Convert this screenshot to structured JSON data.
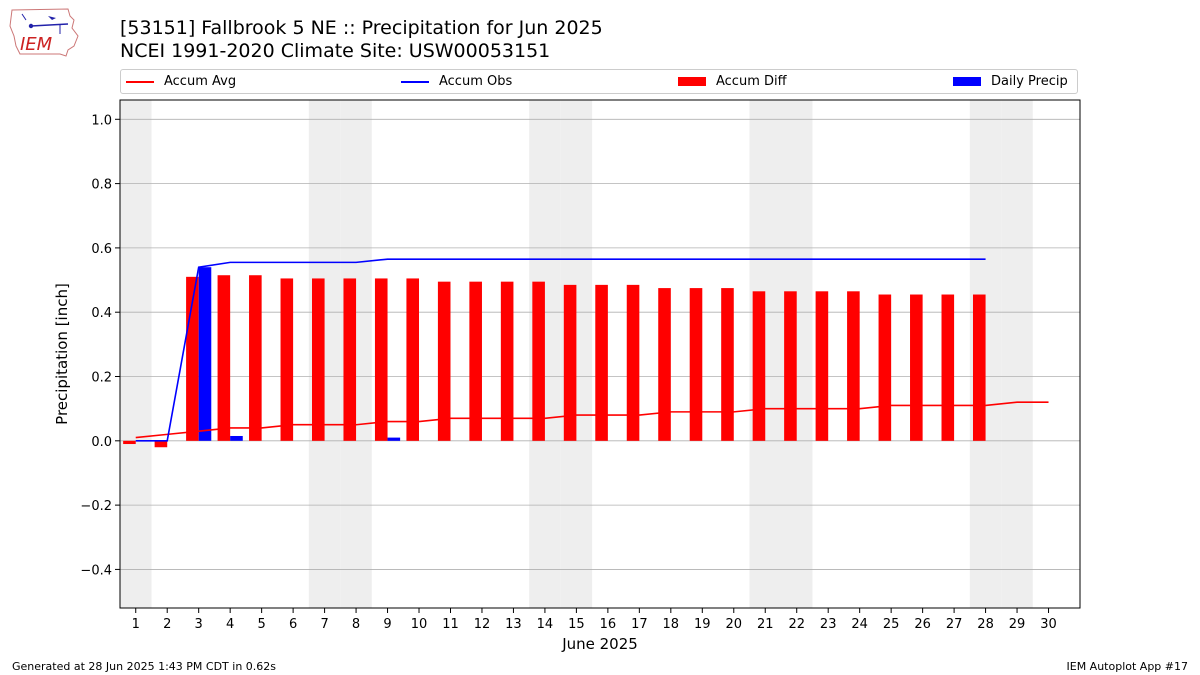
{
  "header": {
    "title_line1": "[53151] Fallbrook 5 NE :: Precipitation for Jun 2025",
    "title_line2": "NCEI 1991-2020 Climate Site: USW00053151",
    "logo_text": "IEM"
  },
  "legend": {
    "accum_avg": "Accum Avg",
    "accum_obs": "Accum Obs",
    "accum_diff": "Accum Diff",
    "daily_precip": "Daily Precip"
  },
  "footer": {
    "generated": "Generated at 28 Jun 2025 1:43 PM CDT in 0.62s",
    "app": "IEM Autoplot App #17"
  },
  "colors": {
    "accum_avg": "#ff0000",
    "accum_obs": "#0000ff",
    "accum_diff": "#ff0000",
    "daily_precip": "#0000ff",
    "weekend_band": "#eeeeee",
    "grid": "#b0b0b0"
  },
  "chart_data": {
    "type": "bar",
    "xlabel": "June 2025",
    "ylabel": "Precipitation [inch]",
    "ylim": [
      -0.52,
      1.06
    ],
    "yticks": [
      -0.4,
      -0.2,
      0.0,
      0.2,
      0.4,
      0.6,
      0.8,
      1.0
    ],
    "ytick_labels": [
      "−0.4",
      "−0.2",
      "0.0",
      "0.2",
      "0.4",
      "0.6",
      "0.8",
      "1.0"
    ],
    "xlim": [
      0.5,
      31.0
    ],
    "days": [
      1,
      2,
      3,
      4,
      5,
      6,
      7,
      8,
      9,
      10,
      11,
      12,
      13,
      14,
      15,
      16,
      17,
      18,
      19,
      20,
      21,
      22,
      23,
      24,
      25,
      26,
      27,
      28,
      29,
      30
    ],
    "grid": "horizontal",
    "legend_position": "top",
    "weekend_days": [
      1,
      7,
      8,
      14,
      15,
      21,
      22,
      28,
      29
    ],
    "series": [
      {
        "name": "Accum Avg",
        "kind": "line",
        "x": [
          1,
          2,
          3,
          4,
          5,
          6,
          7,
          8,
          9,
          10,
          11,
          12,
          13,
          14,
          15,
          16,
          17,
          18,
          19,
          20,
          21,
          22,
          23,
          24,
          25,
          26,
          27,
          28,
          29,
          30
        ],
        "values": [
          0.01,
          0.02,
          0.03,
          0.04,
          0.04,
          0.05,
          0.05,
          0.05,
          0.06,
          0.06,
          0.07,
          0.07,
          0.07,
          0.07,
          0.08,
          0.08,
          0.08,
          0.09,
          0.09,
          0.09,
          0.1,
          0.1,
          0.1,
          0.1,
          0.11,
          0.11,
          0.11,
          0.11,
          0.12,
          0.12
        ]
      },
      {
        "name": "Accum Obs",
        "kind": "line",
        "x": [
          1,
          2,
          3,
          4,
          5,
          6,
          7,
          8,
          9,
          10,
          11,
          12,
          13,
          14,
          15,
          16,
          17,
          18,
          19,
          20,
          21,
          22,
          23,
          24,
          25,
          26,
          27,
          28
        ],
        "values": [
          0.0,
          0.0,
          0.54,
          0.555,
          0.555,
          0.555,
          0.555,
          0.555,
          0.565,
          0.565,
          0.565,
          0.565,
          0.565,
          0.565,
          0.565,
          0.565,
          0.565,
          0.565,
          0.565,
          0.565,
          0.565,
          0.565,
          0.565,
          0.565,
          0.565,
          0.565,
          0.565,
          0.565
        ]
      },
      {
        "name": "Accum Diff",
        "kind": "bar",
        "x": [
          1,
          2,
          3,
          4,
          5,
          6,
          7,
          8,
          9,
          10,
          11,
          12,
          13,
          14,
          15,
          16,
          17,
          18,
          19,
          20,
          21,
          22,
          23,
          24,
          25,
          26,
          27,
          28
        ],
        "values": [
          -0.01,
          -0.02,
          0.51,
          0.515,
          0.515,
          0.505,
          0.505,
          0.505,
          0.505,
          0.505,
          0.495,
          0.495,
          0.495,
          0.495,
          0.485,
          0.485,
          0.485,
          0.475,
          0.475,
          0.475,
          0.465,
          0.465,
          0.465,
          0.465,
          0.455,
          0.455,
          0.455,
          0.455
        ]
      },
      {
        "name": "Daily Precip",
        "kind": "bar",
        "x": [
          3,
          4,
          9
        ],
        "values": [
          0.54,
          0.015,
          0.01
        ]
      }
    ]
  }
}
